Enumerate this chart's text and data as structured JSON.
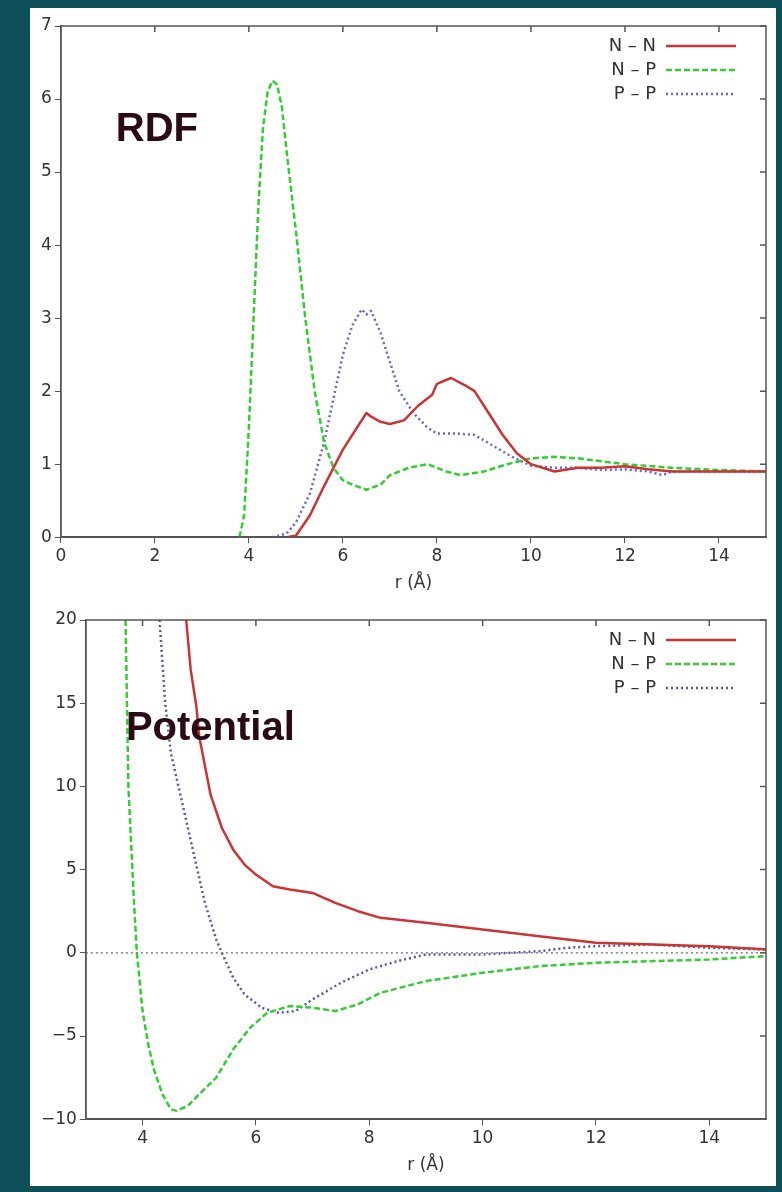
{
  "chart_data": [
    {
      "type": "line",
      "title": "RDF",
      "xlabel": "r (Å)",
      "xlim": [
        0,
        15
      ],
      "xticks": [
        0,
        2,
        4,
        6,
        8,
        10,
        12,
        14
      ],
      "ylim": [
        0,
        7
      ],
      "yticks": [
        0,
        1,
        2,
        3,
        4,
        5,
        6,
        7
      ],
      "grid": false,
      "legend": "top right",
      "marker": "none",
      "series": [
        {
          "name": "N – N",
          "color": "#cc3333",
          "line_style": "solid",
          "x": [
            4.8,
            5.0,
            5.3,
            5.6,
            6.0,
            6.3,
            6.5,
            6.6,
            6.8,
            7.0,
            7.3,
            7.6,
            7.9,
            8.0,
            8.3,
            8.6,
            8.8,
            9.1,
            9.4,
            9.7,
            10.0,
            10.5,
            11.0,
            11.5,
            12.0,
            12.5,
            13.0,
            13.5,
            14.0,
            15.0
          ],
          "values": [
            0,
            0.02,
            0.3,
            0.7,
            1.2,
            1.5,
            1.7,
            1.65,
            1.58,
            1.55,
            1.6,
            1.8,
            1.95,
            2.1,
            2.18,
            2.08,
            2.0,
            1.7,
            1.4,
            1.15,
            1.0,
            0.9,
            0.95,
            0.95,
            0.97,
            0.93,
            0.9,
            0.9,
            0.9,
            0.9
          ]
        },
        {
          "name": "N – P",
          "color": "#33cc33",
          "line_style": "dashed",
          "x": [
            3.8,
            3.9,
            4.0,
            4.1,
            4.2,
            4.3,
            4.4,
            4.5,
            4.6,
            4.7,
            4.8,
            5.0,
            5.2,
            5.4,
            5.6,
            5.8,
            6.0,
            6.2,
            6.5,
            6.8,
            7.0,
            7.4,
            7.8,
            8.2,
            8.5,
            9.0,
            9.5,
            10.0,
            10.5,
            11.0,
            12.0,
            13.0,
            14.0,
            15.0
          ],
          "values": [
            0,
            0.3,
            1.5,
            3.0,
            4.5,
            5.6,
            6.1,
            6.25,
            6.2,
            5.9,
            5.3,
            4.2,
            3.0,
            2.0,
            1.3,
            0.95,
            0.78,
            0.72,
            0.65,
            0.72,
            0.85,
            0.95,
            1.0,
            0.9,
            0.85,
            0.9,
            1.0,
            1.08,
            1.1,
            1.08,
            1.0,
            0.95,
            0.92,
            0.9
          ]
        },
        {
          "name": "P – P",
          "color": "#6666cc",
          "line_style": "dotted",
          "x": [
            4.5,
            4.8,
            5.0,
            5.3,
            5.6,
            5.8,
            6.0,
            6.2,
            6.4,
            6.5,
            6.6,
            6.8,
            7.0,
            7.2,
            7.5,
            7.8,
            8.0,
            8.4,
            8.8,
            9.2,
            9.6,
            10.0,
            10.5,
            11.0,
            11.5,
            12.0,
            12.5,
            12.8,
            13.0,
            15.0
          ],
          "values": [
            0,
            0.05,
            0.2,
            0.6,
            1.3,
            1.9,
            2.5,
            2.9,
            3.12,
            3.05,
            3.1,
            2.8,
            2.4,
            2.0,
            1.7,
            1.5,
            1.42,
            1.42,
            1.4,
            1.25,
            1.1,
            0.98,
            0.95,
            0.95,
            0.92,
            0.93,
            0.9,
            0.85,
            0.9,
            0.9
          ]
        }
      ]
    },
    {
      "type": "line",
      "title": "Potential",
      "xlabel": "r (Å)",
      "xlim": [
        3,
        15
      ],
      "xticks": [
        4,
        6,
        8,
        10,
        12,
        14
      ],
      "ylim": [
        -10,
        20
      ],
      "yticks": [
        {
          "value": -10,
          "label": "−10"
        },
        {
          "value": -5,
          "label": "−5"
        },
        0,
        5,
        10,
        15,
        20
      ],
      "grid": false,
      "legend": "top right",
      "marker": "none",
      "ref_lines": [
        {
          "axis": "y",
          "value": 0,
          "color": "#666666",
          "line_style": "dotted"
        }
      ],
      "series": [
        {
          "name": "N – N",
          "color": "#cc3333",
          "line_style": "solid",
          "x": [
            4.77,
            4.85,
            4.95,
            5.0,
            5.2,
            5.4,
            5.6,
            5.8,
            6.0,
            6.3,
            6.6,
            7.0,
            7.4,
            7.8,
            8.2,
            9.0,
            10.0,
            11.0,
            12.0,
            13.0,
            14.0,
            15.0
          ],
          "values": [
            20,
            17,
            14.8,
            13,
            9.5,
            7.5,
            6.2,
            5.3,
            4.7,
            4.0,
            3.8,
            3.6,
            3.0,
            2.5,
            2.1,
            1.8,
            1.4,
            1.0,
            0.6,
            0.5,
            0.4,
            0.2
          ]
        },
        {
          "name": "N – P",
          "color": "#33cc33",
          "line_style": "dashed",
          "x": [
            3.7,
            3.75,
            3.85,
            3.9,
            4.0,
            4.1,
            4.2,
            4.35,
            4.5,
            4.6,
            4.8,
            5.0,
            5.3,
            5.6,
            5.9,
            6.2,
            6.6,
            7.0,
            7.4,
            7.8,
            8.2,
            9.0,
            10.0,
            11.0,
            12.0,
            13.0,
            14.0,
            15.0
          ],
          "values": [
            20,
            10,
            3,
            0,
            -3.5,
            -5.5,
            -7,
            -8.5,
            -9.4,
            -9.5,
            -9.2,
            -8.5,
            -7.5,
            -5.8,
            -4.5,
            -3.6,
            -3.2,
            -3.3,
            -3.5,
            -3.1,
            -2.4,
            -1.7,
            -1.2,
            -0.8,
            -0.6,
            -0.5,
            -0.4,
            -0.2
          ]
        },
        {
          "name": "P – P",
          "color": "#5555aa",
          "line_style": "dotted",
          "x": [
            4.3,
            4.4,
            4.5,
            4.7,
            4.9,
            5.1,
            5.3,
            5.4,
            5.6,
            5.8,
            6.1,
            6.4,
            6.7,
            7.0,
            7.5,
            8.0,
            8.5,
            9.0,
            10.0,
            11.0,
            11.5,
            12.0,
            13.0,
            14.0,
            15.0
          ],
          "values": [
            20,
            15,
            12,
            9,
            6,
            3,
            0.8,
            0,
            -1.5,
            -2.5,
            -3.3,
            -3.6,
            -3.5,
            -2.8,
            -1.8,
            -1.0,
            -0.5,
            -0.1,
            -0.1,
            0.1,
            0.3,
            0.4,
            0.5,
            0.3,
            0.2
          ]
        }
      ]
    }
  ]
}
